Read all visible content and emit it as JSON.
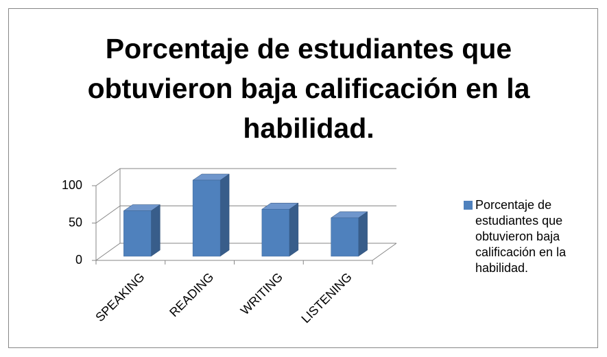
{
  "chart_data": {
    "type": "bar3d",
    "title": "Porcentaje de estudiantes que obtuvieron baja calificación en la habilidad.",
    "categories": [
      "SPEAKING",
      "READING",
      "WRITING",
      "LISTENING"
    ],
    "series": [
      {
        "name": "Porcentaje de estudiantes que obtuvieron baja calificación en la habilidad.",
        "color": "#4f81bd",
        "values": [
          58,
          97,
          60,
          49
        ]
      }
    ],
    "ylim": [
      0,
      100
    ],
    "yticks": [
      0,
      50,
      100
    ],
    "grid": true,
    "legend": "right"
  }
}
